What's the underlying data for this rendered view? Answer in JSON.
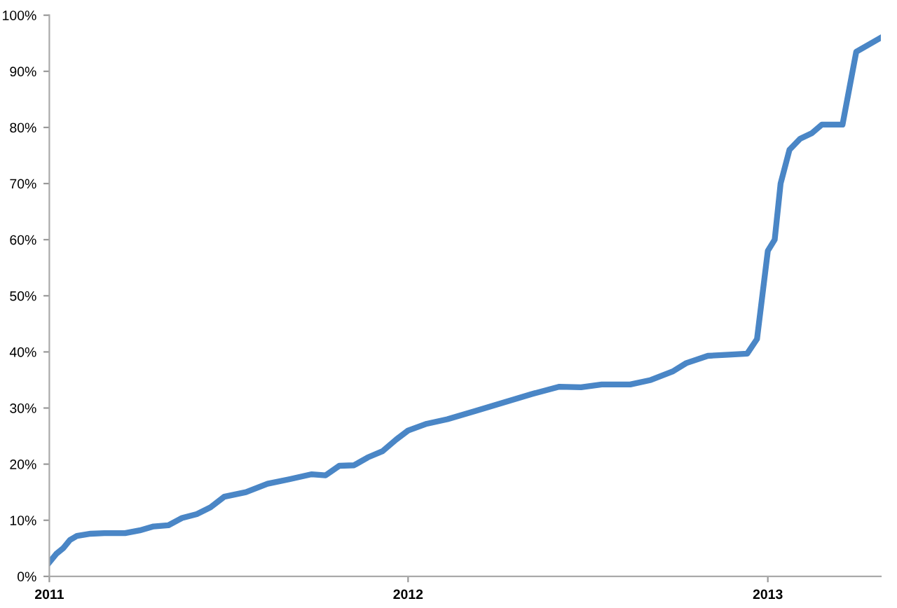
{
  "chart_data": {
    "type": "line",
    "x": [
      "2011-01-01",
      "2011-01-08",
      "2011-01-15",
      "2011-01-22",
      "2011-01-29",
      "2011-02-12",
      "2011-02-26",
      "2011-03-19",
      "2011-04-03",
      "2011-04-17",
      "2011-05-02",
      "2011-05-16",
      "2011-05-31",
      "2011-06-14",
      "2011-06-28",
      "2011-07-20",
      "2011-08-11",
      "2011-09-02",
      "2011-09-25",
      "2011-10-09",
      "2011-10-23",
      "2011-11-07",
      "2011-11-21",
      "2011-12-06",
      "2011-12-20",
      "2012-01-01",
      "2012-01-20",
      "2012-02-10",
      "2012-03-10",
      "2012-05-06",
      "2012-06-03",
      "2012-06-25",
      "2012-07-16",
      "2012-08-14",
      "2012-09-04",
      "2012-09-26",
      "2012-10-10",
      "2012-11-01",
      "2012-11-22",
      "2012-12-11",
      "2012-12-21",
      "2013-01-01",
      "2013-01-08",
      "2013-01-14",
      "2013-01-23",
      "2013-02-03",
      "2013-02-15",
      "2013-02-25",
      "2013-03-18",
      "2013-03-25",
      "2013-04-01",
      "2013-04-26"
    ],
    "series": [
      {
        "color": "#4a86c6",
        "values": [
          2.5,
          4,
          5,
          6.5,
          7.2,
          7.6,
          7.7,
          7.7,
          8.2,
          8.9,
          9.1,
          10.4,
          11.1,
          12.3,
          14.2,
          15.0,
          16.5,
          17.3,
          18.2,
          18.0,
          19.7,
          19.8,
          21.2,
          22.3,
          24.4,
          26.0,
          27.2,
          28.0,
          29.5,
          32.5,
          33.8,
          33.7,
          34.2,
          34.2,
          35.0,
          36.5,
          38,
          39.3,
          39.5,
          39.7,
          42.3,
          58,
          60,
          70,
          76,
          78,
          79,
          80.5,
          80.5,
          87,
          93.5,
          96
        ]
      }
    ],
    "xlim": [
      "2011-01-01",
      "2013-04-26"
    ],
    "xticks": [
      {
        "value": "2011-01-01",
        "label": "2011"
      },
      {
        "value": "2012-01-01",
        "label": "2012"
      },
      {
        "value": "2013-01-01",
        "label": "2013"
      }
    ],
    "ylim": [
      0,
      100
    ],
    "yticks": [
      {
        "value": 0,
        "label": "0%"
      },
      {
        "value": 10,
        "label": "10%"
      },
      {
        "value": 20,
        "label": "20%"
      },
      {
        "value": 30,
        "label": "30%"
      },
      {
        "value": 40,
        "label": "40%"
      },
      {
        "value": 50,
        "label": "50%"
      },
      {
        "value": 60,
        "label": "60%"
      },
      {
        "value": 70,
        "label": "70%"
      },
      {
        "value": 80,
        "label": "80%"
      },
      {
        "value": 90,
        "label": "90%"
      },
      {
        "value": 100,
        "label": "100%"
      }
    ],
    "grid": false,
    "legend": false,
    "marker": "none",
    "line_style": "solid"
  }
}
